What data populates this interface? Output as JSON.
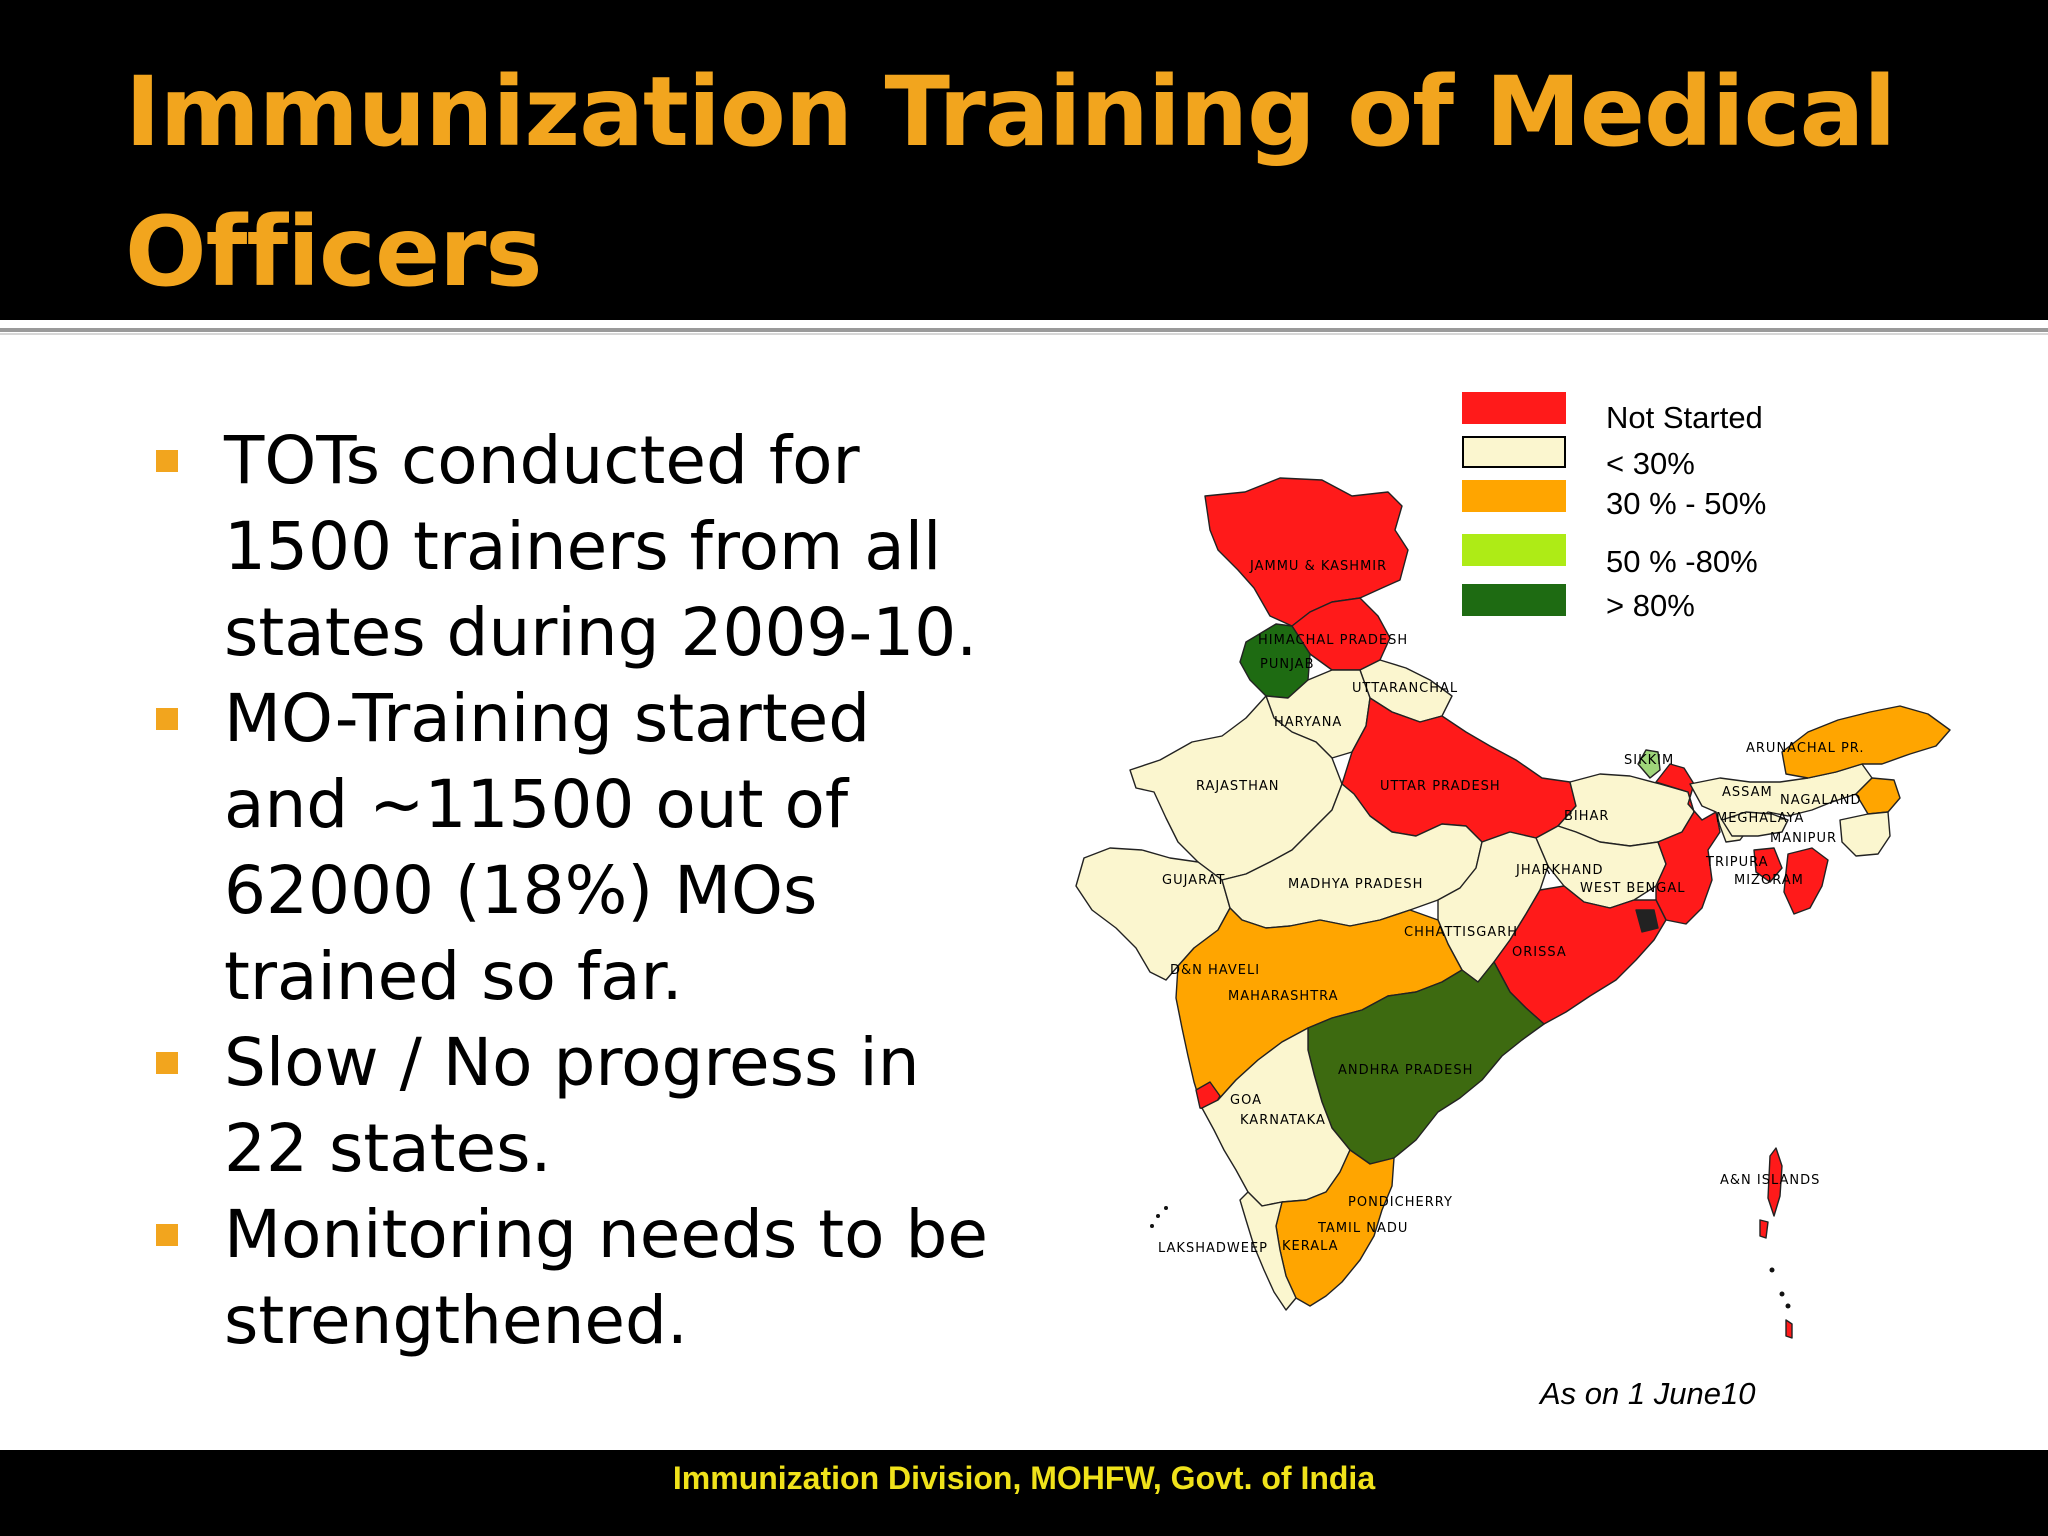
{
  "slide": {
    "title": "Immunization Training of Medical Officers",
    "bullets": [
      "TOTs conducted for 1500 trainers from all states during 2009-10.",
      "MO-Training started and ~11500 out of 62000 (18%) MOs trained so far.",
      "Slow / No progress in 22 states.",
      "Monitoring needs to be strengthened."
    ],
    "as_on": "As on 1 June10",
    "footer": "Immunization Division, MOHFW, Govt. of India"
  },
  "legend": [
    {
      "label": "Not Started",
      "color": "#ff1a1a"
    },
    {
      "label": "< 30%",
      "color": "#fbf6cf"
    },
    {
      "label": "30 % - 50%",
      "color": "#ffa500"
    },
    {
      "label": "50 % -80%",
      "color": "#aeeb16"
    },
    {
      "label": "> 80%",
      "color": "#1e6b12"
    }
  ],
  "map": {
    "labels": {
      "jk": "JAMMU & KASHMIR",
      "hp": "HIMACHAL PRADESH",
      "pb": "PUNJAB",
      "uk": "UTTARANCHAL",
      "hr": "HARYANA",
      "rj": "RAJASTHAN",
      "up": "UTTAR PRADESH",
      "sk": "SIKKIM",
      "ar": "ARUNACHAL PR.",
      "as": "ASSAM",
      "nl": "NAGALAND",
      "ml": "MEGHALAYA",
      "br": "BIHAR",
      "mn": "MANIPUR",
      "tr": "TRIPURA",
      "mz": "MIZORAM",
      "jh": "JHARKHAND",
      "wb": "WEST BENGAL",
      "gj": "GUJARAT",
      "mp": "MADHYA PRADESH",
      "cg": "CHHATTISGARH",
      "or": "ORISSA",
      "dn": "D&N HAVELI",
      "mh": "MAHARASHTRA",
      "ap": "ANDHRA PRADESH",
      "ga": "GOA",
      "ka": "KARNATAKA",
      "an": "A&N ISLANDS",
      "pd": "PONDICHERRY",
      "tn": "TAMIL NADU",
      "ld": "LAKSHADWEEP",
      "kl": "KERALA"
    }
  }
}
